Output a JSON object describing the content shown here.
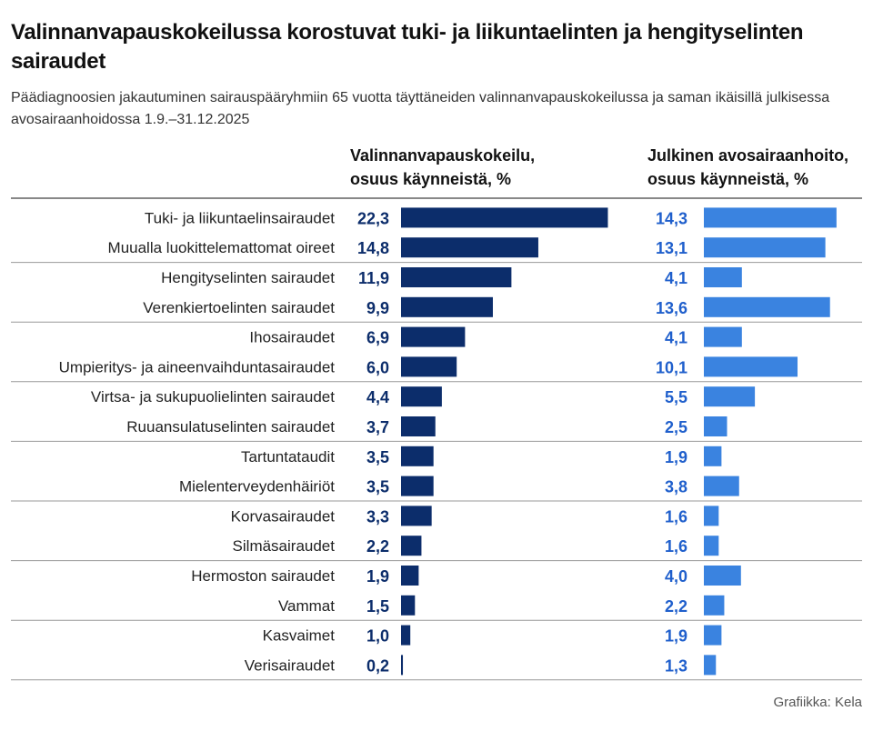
{
  "title": "Valinnanvapauskokeilussa korostuvat tuki- ja liikuntaelinten ja hengityselinten sairaudet",
  "subtitle": "Päädiagnoosien jakautuminen sairauspääryhmiin 65 vuotta täyttäneiden valinnanvapauskokeilussa ja saman ikäisillä julkisessa avosairaanhoidossa 1.9.–31.12.2025",
  "credit": "Grafiikka: Kela",
  "colors": {
    "series_a": "#0c2d6b",
    "series_b": "#3a83e0",
    "divider": "#999999",
    "header_rule": "#888888"
  },
  "chart_data": {
    "type": "bar",
    "orientation": "horizontal",
    "categories": [
      "Tuki- ja liikuntaelinsairaudet",
      "Muualla luokittelemattomat oireet",
      "Hengityselinten sairaudet",
      "Verenkiertoelinten sairaudet",
      "Ihosairaudet",
      "Umpieritys- ja aineenvaihduntasairaudet",
      "Virtsa- ja sukupuolielinten sairaudet",
      "Ruuansulatuselinten sairaudet",
      "Tartuntataudit",
      "Mielenterveydenhäiriöt",
      "Korvasairaudet",
      "Silmäsairaudet",
      "Hermoston sairaudet",
      "Vammat",
      "Kasvaimet",
      "Verisairaudet"
    ],
    "series": [
      {
        "name": "Valinnanvapauskokeilu, osuus käynneistä, %",
        "name_lines": [
          "Valinnanvapauskokeilu,",
          "osuus käynneistä, %"
        ],
        "values": [
          22.3,
          14.8,
          11.9,
          9.9,
          6.9,
          6.0,
          4.4,
          3.7,
          3.5,
          3.5,
          3.3,
          2.2,
          1.9,
          1.5,
          1.0,
          0.2
        ],
        "labels": [
          "22,3",
          "14,8",
          "11,9",
          "9,9",
          "6,9",
          "6,0",
          "4,4",
          "3,7",
          "3,5",
          "3,5",
          "3,3",
          "2,2",
          "1,9",
          "1,5",
          "1,0",
          "0,2"
        ]
      },
      {
        "name": "Julkinen avosairaanhoito, osuus käynneistä, %",
        "name_lines": [
          "Julkinen avosairaanhoito,",
          "osuus käynneistä, %"
        ],
        "values": [
          14.3,
          13.1,
          4.1,
          13.6,
          4.1,
          10.1,
          5.5,
          2.5,
          1.9,
          3.8,
          1.6,
          1.6,
          4.0,
          2.2,
          1.9,
          1.3
        ],
        "labels": [
          "14,3",
          "13,1",
          "4,1",
          "13,6",
          "4,1",
          "10,1",
          "5,5",
          "2,5",
          "1,9",
          "3,8",
          "1,6",
          "1,6",
          "4,0",
          "2,2",
          "1,9",
          "1,3"
        ]
      }
    ],
    "legend": "column-headers",
    "grid": false
  }
}
